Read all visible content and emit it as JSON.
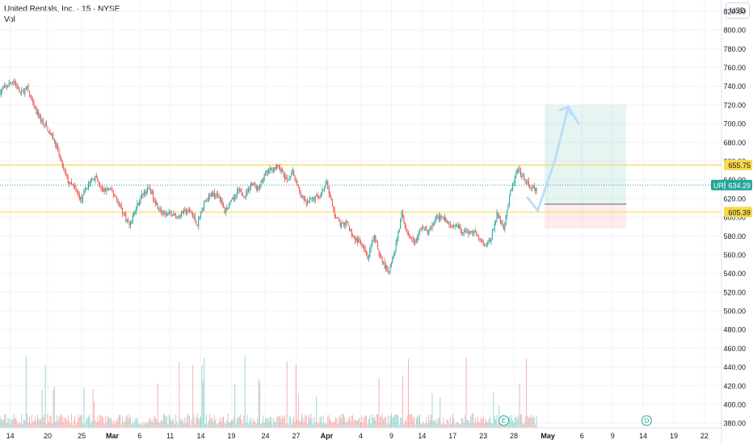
{
  "legend": {
    "title": "United Rentals, Inc. · 15 · NYSE",
    "volume_label": "Vol"
  },
  "currency": "USD",
  "colors": {
    "up": "#26a69a",
    "down": "#ef5350",
    "level": "#f7d94c",
    "last_price": "#26a69a",
    "arrow": "#bbdefb",
    "grid": "#f0f3fa",
    "axis_text": "#131722"
  },
  "chart_data": {
    "type": "candlestick",
    "symbol": "URI",
    "y_axis": {
      "ticks": [
        380,
        400,
        420,
        440,
        460,
        480,
        500,
        520,
        540,
        560,
        580,
        600,
        620,
        640,
        660,
        680,
        700,
        720,
        740,
        760,
        780,
        800,
        820
      ],
      "ylim": [
        375,
        832
      ],
      "tick_format": "fixed2"
    },
    "x_axis": {
      "labels": [
        {
          "t": 0.5,
          "text": "14"
        },
        {
          "t": 6,
          "text": "20"
        },
        {
          "t": 11,
          "text": "25"
        },
        {
          "t": 15.5,
          "text": "Mar"
        },
        {
          "t": 19.5,
          "text": "6"
        },
        {
          "t": 24,
          "text": "11"
        },
        {
          "t": 28.5,
          "text": "14"
        },
        {
          "t": 33,
          "text": "19"
        },
        {
          "t": 38,
          "text": "24"
        },
        {
          "t": 42.5,
          "text": "27"
        },
        {
          "t": 47,
          "text": "Apr"
        },
        {
          "t": 52,
          "text": "4"
        },
        {
          "t": 56.5,
          "text": "9"
        },
        {
          "t": 61,
          "text": "14"
        },
        {
          "t": 65.5,
          "text": "17"
        },
        {
          "t": 70,
          "text": "23"
        },
        {
          "t": 74.5,
          "text": "28"
        },
        {
          "t": 79.5,
          "text": "May"
        },
        {
          "t": 84.5,
          "text": "6"
        },
        {
          "t": 89,
          "text": "9"
        },
        {
          "t": 93.5,
          "text": "14"
        },
        {
          "t": 98,
          "text": "19"
        },
        {
          "t": 102.5,
          "text": "22"
        }
      ],
      "xlim": [
        -1,
        105
      ]
    },
    "price_path": [
      [
        -1,
        734
      ],
      [
        0,
        740
      ],
      [
        1,
        746
      ],
      [
        2,
        732
      ],
      [
        3,
        738
      ],
      [
        4,
        716
      ],
      [
        5,
        704
      ],
      [
        6,
        694
      ],
      [
        7,
        682
      ],
      [
        8,
        658
      ],
      [
        9,
        638
      ],
      [
        10,
        630
      ],
      [
        11,
        618
      ],
      [
        12,
        636
      ],
      [
        13,
        642
      ],
      [
        14,
        628
      ],
      [
        15,
        630
      ],
      [
        16,
        622
      ],
      [
        17,
        606
      ],
      [
        18,
        592
      ],
      [
        19,
        610
      ],
      [
        20,
        626
      ],
      [
        21,
        630
      ],
      [
        22,
        614
      ],
      [
        23,
        602
      ],
      [
        24,
        604
      ],
      [
        25,
        600
      ],
      [
        26,
        606
      ],
      [
        27,
        606
      ],
      [
        28,
        592
      ],
      [
        29,
        616
      ],
      [
        30,
        624
      ],
      [
        31,
        626
      ],
      [
        32,
        606
      ],
      [
        33,
        616
      ],
      [
        34,
        628
      ],
      [
        35,
        624
      ],
      [
        36,
        636
      ],
      [
        37,
        630
      ],
      [
        38,
        646
      ],
      [
        39,
        652
      ],
      [
        40,
        654
      ],
      [
        41,
        640
      ],
      [
        42,
        648
      ],
      [
        43,
        626
      ],
      [
        44,
        614
      ],
      [
        45,
        620
      ],
      [
        46,
        624
      ],
      [
        47,
        638
      ],
      [
        48,
        606
      ],
      [
        49,
        592
      ],
      [
        50,
        592
      ],
      [
        51,
        578
      ],
      [
        52,
        572
      ],
      [
        53,
        556
      ],
      [
        54,
        578
      ],
      [
        55,
        556
      ],
      [
        56,
        540
      ],
      [
        57,
        566
      ],
      [
        58,
        602
      ],
      [
        59,
        580
      ],
      [
        60,
        574
      ],
      [
        61,
        590
      ],
      [
        62,
        584
      ],
      [
        63,
        598
      ],
      [
        64,
        602
      ],
      [
        65,
        590
      ],
      [
        66,
        594
      ],
      [
        67,
        584
      ],
      [
        68,
        584
      ],
      [
        69,
        584
      ],
      [
        70,
        572
      ],
      [
        71,
        574
      ],
      [
        72,
        602
      ],
      [
        73,
        590
      ],
      [
        74,
        626
      ],
      [
        75,
        650
      ],
      [
        76,
        640
      ],
      [
        77,
        632
      ],
      [
        78,
        628
      ]
    ],
    "volume": {
      "ylim": [
        0,
        125000
      ]
    },
    "horizontal_levels": [
      605.39,
      655.75
    ],
    "last_price": 634.29,
    "tags": [
      {
        "label": "655.75",
        "price": 655.75,
        "color": "#f7d94c"
      },
      {
        "label": "URI",
        "value": "634.29",
        "price": 634.29,
        "color": "#26a69a"
      },
      {
        "label": "605.39",
        "price": 605.39,
        "color": "#f7d94c"
      }
    ],
    "position_tool": {
      "entry": 614,
      "target": 720,
      "stop": 588,
      "t_start": 79,
      "t_end": 91
    },
    "projection_arrow": [
      [
        76.5,
        621
      ],
      [
        78,
        607
      ],
      [
        80.5,
        660
      ],
      [
        82.5,
        718
      ],
      [
        84,
        700
      ]
    ],
    "events": [
      {
        "t": 73,
        "label": "E"
      },
      {
        "t": 94,
        "label": "D"
      }
    ]
  }
}
